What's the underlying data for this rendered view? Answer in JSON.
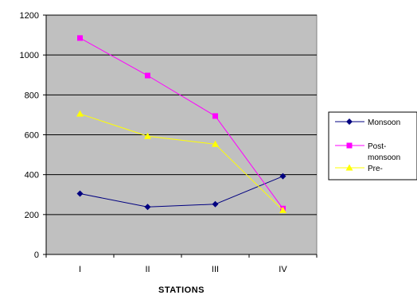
{
  "chart_data": {
    "type": "line",
    "categories": [
      "I",
      "II",
      "III",
      "IV"
    ],
    "series": [
      {
        "name": "Monsoon",
        "values": [
          305,
          238,
          252,
          392
        ],
        "color": "#000080",
        "marker": "diamond"
      },
      {
        "name": "Post-monsoon",
        "legend_lines": [
          "Post-",
          "monsoon"
        ],
        "values": [
          1085,
          897,
          694,
          230
        ],
        "color": "#ff00ff",
        "marker": "square"
      },
      {
        "name": "Pre-",
        "values": [
          705,
          593,
          553,
          222
        ],
        "color": "#ffff00",
        "marker": "triangle"
      }
    ],
    "title": "",
    "xlabel": "STATIONS",
    "ylabel": "",
    "ylim": [
      0,
      1200
    ],
    "yticks": [
      0,
      200,
      400,
      600,
      800,
      1000,
      1200
    ],
    "grid": true,
    "plot_background": "#c0c0c0",
    "legend_position": "right"
  }
}
